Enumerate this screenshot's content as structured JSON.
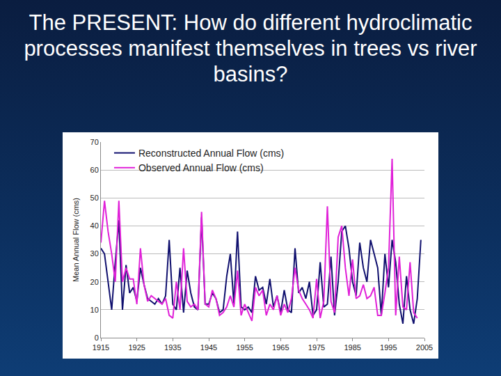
{
  "chart_data": {
    "type": "line",
    "title": "The PRESENT: How do different hydroclimatic processes manifest themselves in trees vs river basins?",
    "y_label": "Mean Annual Flow (cms)",
    "x": [
      1915,
      1916,
      1917,
      1918,
      1919,
      1920,
      1921,
      1922,
      1923,
      1924,
      1925,
      1926,
      1927,
      1928,
      1929,
      1930,
      1931,
      1932,
      1933,
      1934,
      1935,
      1936,
      1937,
      1938,
      1939,
      1940,
      1941,
      1942,
      1943,
      1944,
      1945,
      1946,
      1947,
      1948,
      1949,
      1950,
      1951,
      1952,
      1953,
      1954,
      1955,
      1956,
      1957,
      1958,
      1959,
      1960,
      1961,
      1962,
      1963,
      1964,
      1965,
      1966,
      1967,
      1968,
      1969,
      1970,
      1971,
      1972,
      1973,
      1974,
      1975,
      1976,
      1977,
      1978,
      1979,
      1980,
      1981,
      1982,
      1983,
      1984,
      1985,
      1986,
      1987,
      1988,
      1989,
      1990,
      1991,
      1992,
      1993,
      1994,
      1995,
      1996,
      1997,
      1998,
      1999,
      2000,
      2001,
      2002,
      2003,
      2004
    ],
    "series": [
      {
        "name": "Reconstructed Annual Flow (cms)",
        "color": "#10106e",
        "values": [
          32,
          30,
          20,
          10,
          27,
          42,
          10,
          26,
          16,
          18,
          13,
          25,
          19,
          14,
          13,
          12,
          14,
          12,
          15,
          35,
          12,
          10,
          25,
          9,
          24,
          16,
          11,
          10,
          43,
          12,
          12,
          16,
          14,
          9,
          10,
          22,
          30,
          12,
          38,
          11,
          10,
          11,
          9,
          22,
          17,
          18,
          12,
          21,
          11,
          15,
          9,
          17,
          10,
          9,
          32,
          16,
          18,
          14,
          20,
          8,
          10,
          27,
          11,
          12,
          29,
          8,
          20,
          38,
          40,
          32,
          20,
          15,
          34,
          25,
          20,
          35,
          30,
          25,
          8,
          30,
          18,
          35,
          27,
          12,
          5,
          22,
          10,
          5,
          14,
          35
        ]
      },
      {
        "name": "Observed Annual Flow (cms)",
        "color": "#e020d8",
        "values": [
          34,
          49,
          38,
          30,
          20,
          49,
          20,
          25,
          21,
          21,
          12,
          32,
          19,
          13,
          15,
          14,
          13,
          12,
          14,
          8,
          7,
          20,
          10,
          32,
          13,
          11,
          12,
          10,
          45,
          12,
          11,
          17,
          14,
          8,
          9,
          11,
          15,
          11,
          24,
          8,
          12,
          9,
          6,
          18,
          15,
          17,
          8,
          12,
          10,
          15,
          8,
          12,
          9,
          14,
          25,
          17,
          14,
          12,
          10,
          7,
          21,
          7,
          13,
          47,
          13,
          9,
          36,
          40,
          25,
          15,
          28,
          14,
          15,
          19,
          14,
          15,
          18,
          8,
          8,
          16,
          25,
          64,
          8,
          29,
          11,
          10,
          27,
          9,
          7,
          null
        ]
      }
    ],
    "xlim": [
      1915,
      2005
    ],
    "xticks": [
      1915,
      1925,
      1935,
      1945,
      1955,
      1965,
      1975,
      1985,
      1995,
      2005
    ],
    "ylim": [
      0,
      70
    ],
    "yticks": [
      0,
      10,
      20,
      30,
      40,
      50,
      60,
      70
    ],
    "grid": true,
    "legend": "top-left"
  }
}
